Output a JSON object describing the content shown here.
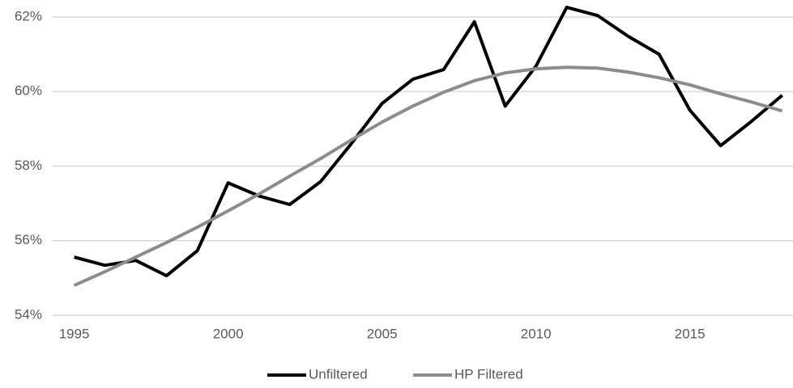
{
  "chart_data": {
    "type": "line",
    "x": [
      1995,
      1996,
      1997,
      1998,
      1999,
      2000,
      2001,
      2002,
      2003,
      2004,
      2005,
      2006,
      2007,
      2008,
      2009,
      2010,
      2011,
      2012,
      2013,
      2014,
      2015,
      2016,
      2017,
      2018
    ],
    "series": [
      {
        "name": "Unfiltered",
        "color": "#000000",
        "values": [
          55.56,
          55.34,
          55.47,
          55.06,
          55.73,
          57.55,
          57.2,
          56.97,
          57.58,
          58.6,
          59.68,
          60.33,
          60.59,
          61.87,
          59.61,
          60.68,
          62.26,
          62.04,
          61.48,
          61.0,
          59.5,
          58.55,
          59.2,
          59.9
        ]
      },
      {
        "name": "HP Filtered",
        "color": "#8c8c8c",
        "values": [
          54.8,
          55.17,
          55.56,
          55.95,
          56.36,
          56.8,
          57.25,
          57.73,
          58.2,
          58.7,
          59.18,
          59.61,
          59.98,
          60.29,
          60.5,
          60.61,
          60.65,
          60.63,
          60.52,
          60.37,
          60.18,
          59.94,
          59.72,
          59.48
        ]
      }
    ],
    "xlim": [
      1994.3,
      2018.35
    ],
    "xticks": [
      1995,
      2000,
      2005,
      2010,
      2015
    ],
    "ylim": [
      54,
      62
    ],
    "yticks": [
      {
        "value": 54,
        "label": "54%"
      },
      {
        "value": 56,
        "label": "56%"
      },
      {
        "value": 58,
        "label": "58%"
      },
      {
        "value": 60,
        "label": "60%"
      },
      {
        "value": 62,
        "label": "62%"
      }
    ],
    "grid": true,
    "legend": "bottom"
  }
}
